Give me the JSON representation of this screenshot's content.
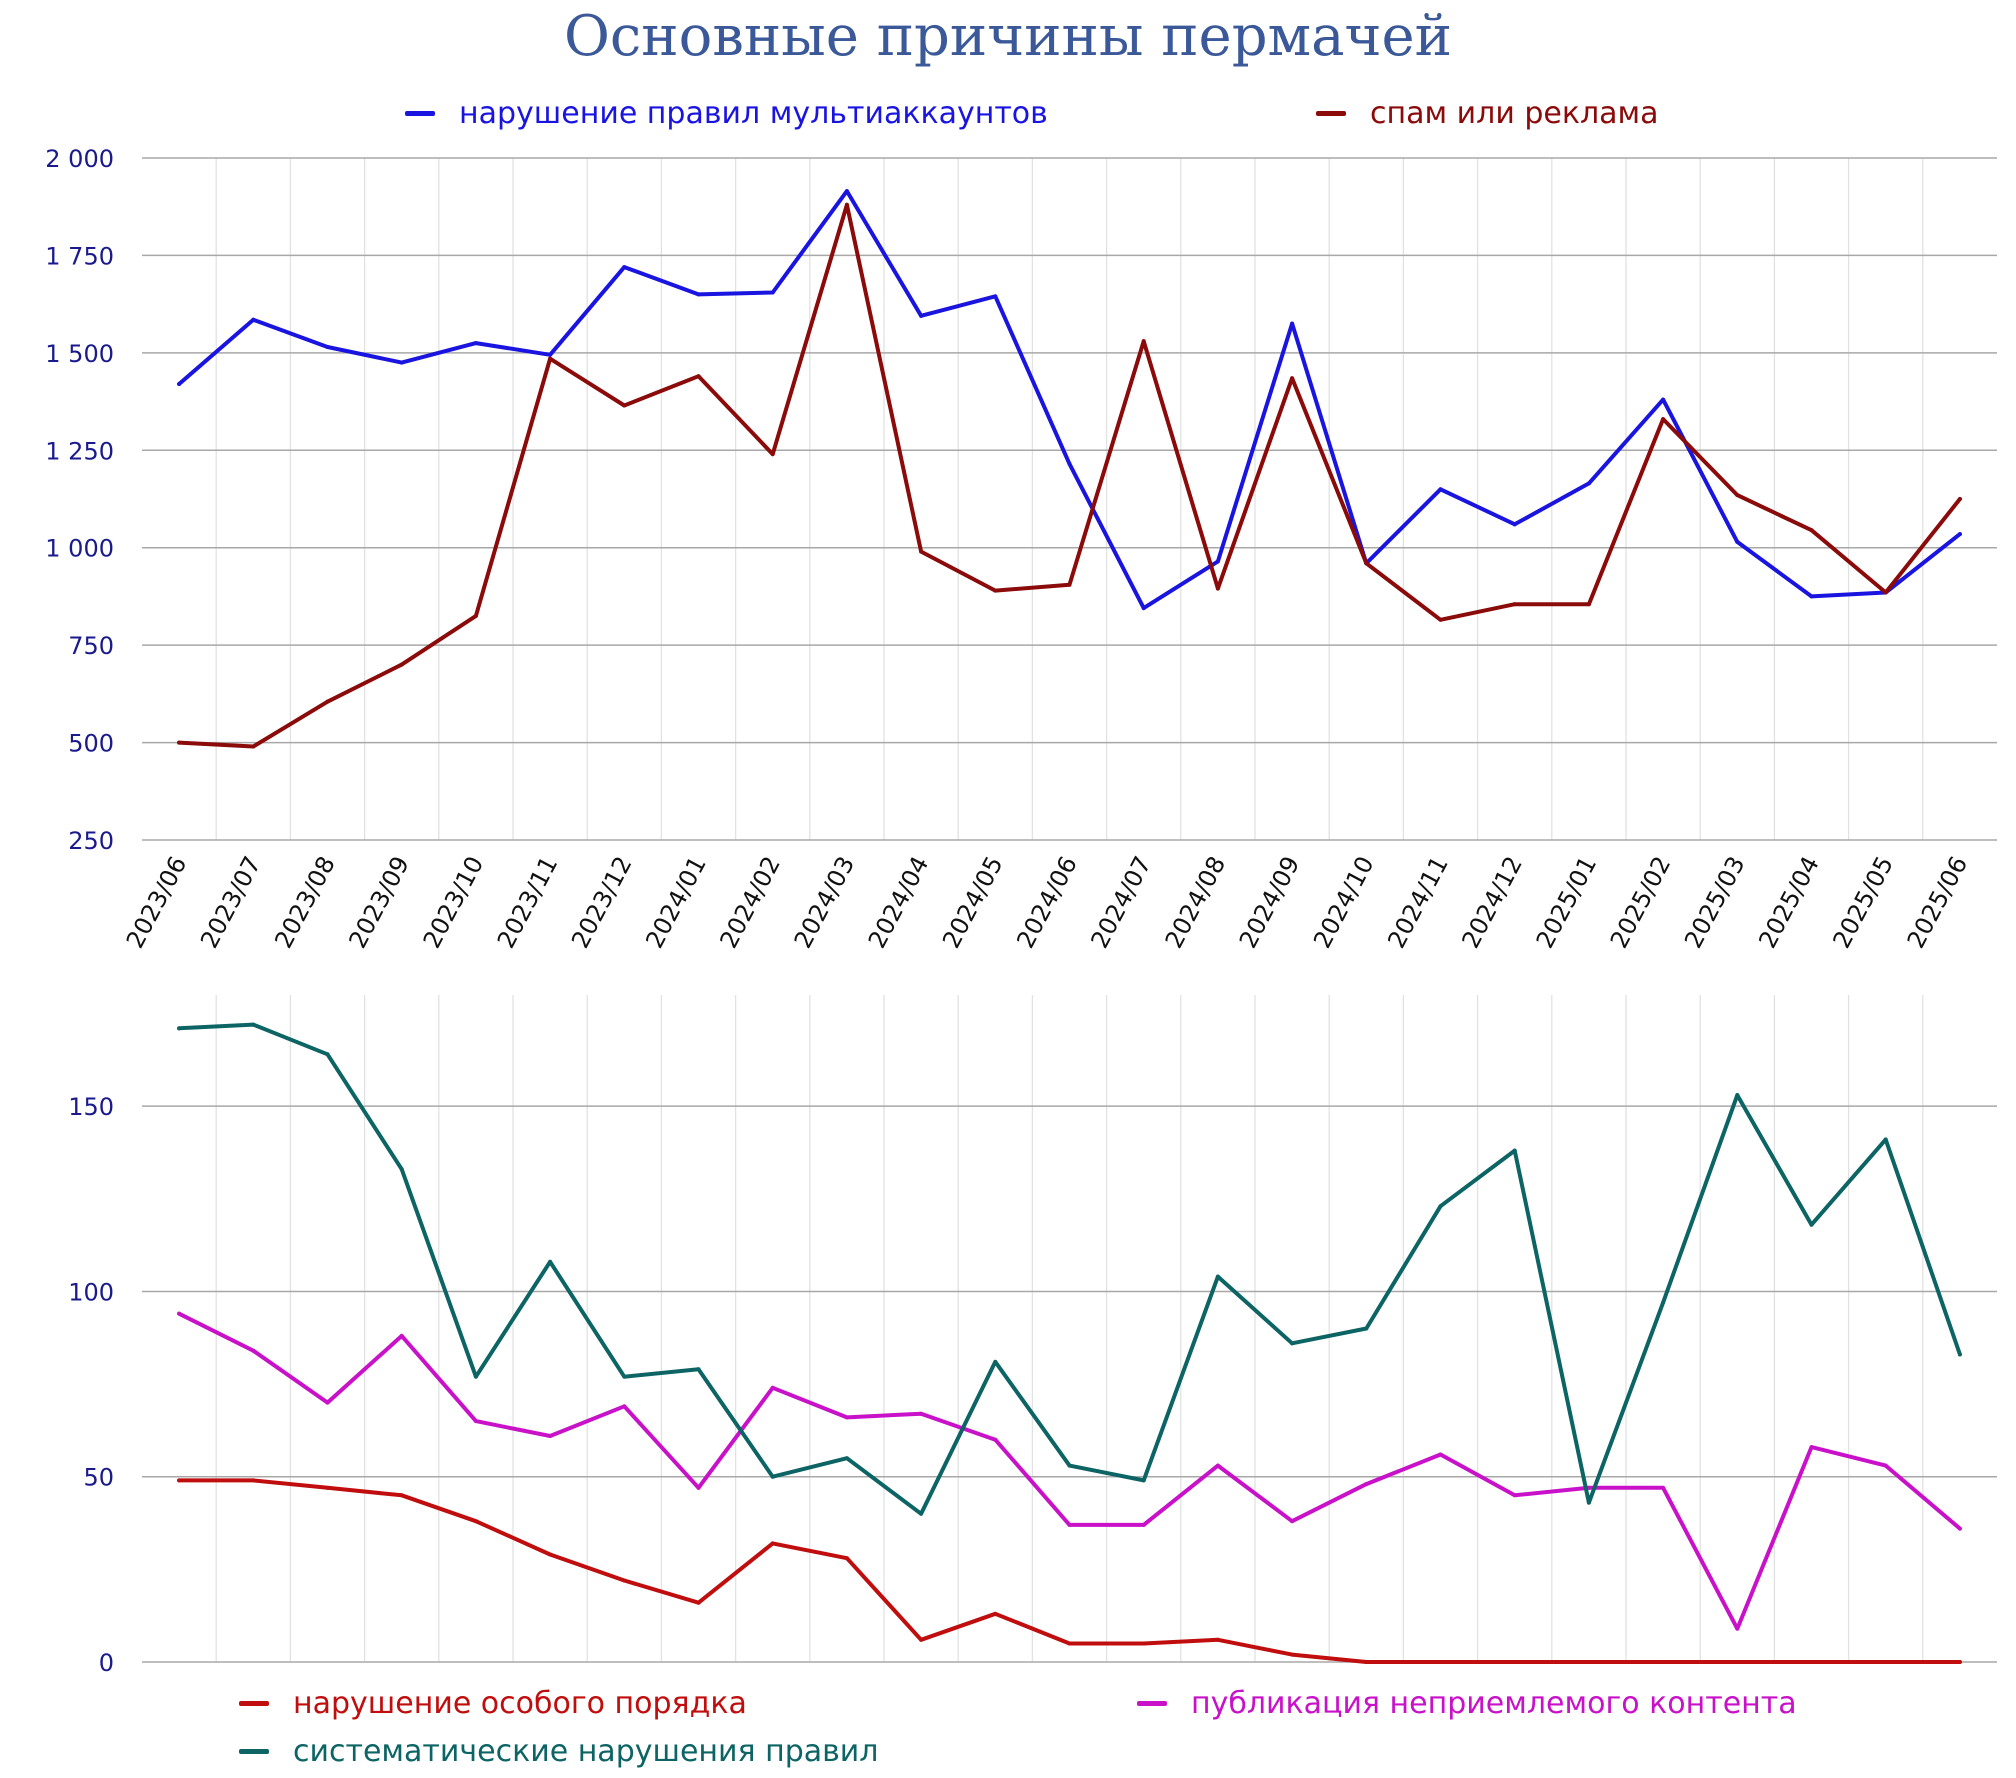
{
  "chart_data": [
    {
      "type": "line",
      "title": "Основные причины пермачей",
      "categories": [
        "2023/06",
        "2023/07",
        "2023/08",
        "2023/09",
        "2023/10",
        "2023/11",
        "2023/12",
        "2024/01",
        "2024/02",
        "2024/03",
        "2024/04",
        "2024/05",
        "2024/06",
        "2024/07",
        "2024/08",
        "2024/09",
        "2024/10",
        "2024/11",
        "2024/12",
        "2025/01",
        "2025/02",
        "2025/03",
        "2025/04",
        "2025/05",
        "2025/06"
      ],
      "ylim": [
        250,
        2000
      ],
      "yticks": [
        250,
        500,
        750,
        1000,
        1250,
        1500,
        1750,
        2000
      ],
      "ytick_labels": [
        "250",
        "500",
        "750",
        "1 000",
        "1 250",
        "1 500",
        "1 750",
        "2 000"
      ],
      "legend_position": "top",
      "grid": true,
      "series": [
        {
          "name": "нарушение правил мультиаккаунтов",
          "color": "#1a14e0",
          "values": [
            1420,
            1585,
            1515,
            1475,
            1525,
            1495,
            1720,
            1650,
            1655,
            1915,
            1595,
            1645,
            1215,
            845,
            965,
            1575,
            960,
            1150,
            1060,
            1165,
            1380,
            1015,
            875,
            885,
            1035
          ]
        },
        {
          "name": "спам или реклама",
          "color": "#8b0a0a",
          "values": [
            500,
            490,
            605,
            700,
            825,
            1485,
            1365,
            1440,
            1240,
            1880,
            990,
            890,
            905,
            1530,
            895,
            1435,
            960,
            815,
            855,
            855,
            1330,
            1135,
            1045,
            885,
            1125
          ]
        }
      ]
    },
    {
      "type": "line",
      "categories": [
        "2023/06",
        "2023/07",
        "2023/08",
        "2023/09",
        "2023/10",
        "2023/11",
        "2023/12",
        "2024/01",
        "2024/02",
        "2024/03",
        "2024/04",
        "2024/05",
        "2024/06",
        "2024/07",
        "2024/08",
        "2024/09",
        "2024/10",
        "2024/11",
        "2024/12",
        "2025/01",
        "2025/02",
        "2025/03",
        "2025/04",
        "2025/05",
        "2025/06"
      ],
      "ylim": [
        0,
        180
      ],
      "yticks": [
        0,
        50,
        100,
        150
      ],
      "ytick_labels": [
        "0",
        "50",
        "100",
        "150"
      ],
      "legend_position": "bottom",
      "grid": true,
      "series": [
        {
          "name": "нарушение особого порядка",
          "color": "#c00d0d",
          "values": [
            49,
            49,
            47,
            45,
            38,
            29,
            22,
            16,
            32,
            28,
            6,
            13,
            5,
            5,
            6,
            2,
            0,
            0,
            0,
            0,
            0,
            0,
            0,
            0,
            0
          ]
        },
        {
          "name": "публикация неприемлемого контента",
          "color": "#c811c8",
          "values": [
            94,
            84,
            70,
            88,
            65,
            61,
            69,
            47,
            74,
            66,
            67,
            60,
            37,
            37,
            53,
            38,
            48,
            56,
            45,
            47,
            47,
            9,
            58,
            53,
            36
          ]
        },
        {
          "name": "систематические нарушения правил",
          "color": "#0d6464",
          "values": [
            171,
            172,
            164,
            133,
            77,
            108,
            77,
            79,
            50,
            55,
            40,
            81,
            53,
            49,
            104,
            86,
            90,
            123,
            138,
            43,
            97,
            153,
            118,
            141,
            83
          ]
        }
      ]
    }
  ],
  "colors": {
    "title": "#3b5998",
    "axis_labels": "#1a1a8c",
    "grid": "#a8a8a8",
    "vgrid": "#e2e2e2"
  }
}
